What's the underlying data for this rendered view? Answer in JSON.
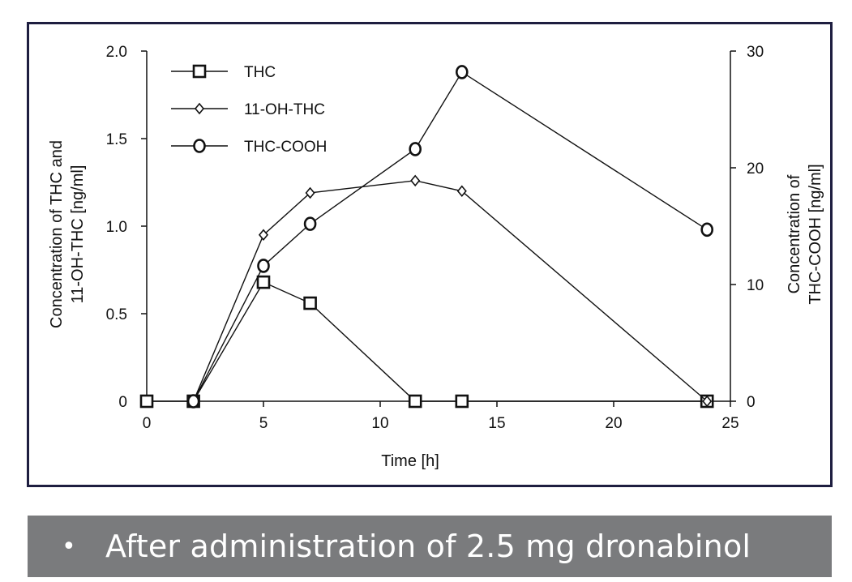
{
  "chart_data": {
    "type": "line",
    "xlabel": "Time [h]",
    "ylabel_left": [
      "Concentration of THC and",
      "11-OH-THC [ng/ml]"
    ],
    "ylabel_right": [
      "Concentration of",
      "THC-COOH [ng/ml]"
    ],
    "xlim": [
      0,
      25
    ],
    "ylim_left": [
      0,
      2.0
    ],
    "ylim_right": [
      0,
      30
    ],
    "x_ticks": [
      0,
      5,
      10,
      15,
      20,
      25
    ],
    "y_left_ticks": [
      "0",
      "0.5",
      "1.0",
      "1.5",
      "2.0"
    ],
    "y_right_ticks": [
      "0",
      "10",
      "20",
      "30"
    ],
    "grid": false,
    "legend_position": "top-left",
    "series": [
      {
        "name": "THC",
        "axis": "left",
        "marker": "square",
        "x": [
          0,
          2,
          5,
          7,
          11.5,
          13.5,
          24
        ],
        "y": [
          0,
          0,
          0.68,
          0.56,
          0,
          0,
          0
        ]
      },
      {
        "name": "11-OH-THC",
        "axis": "left",
        "marker": "diamond",
        "x": [
          2,
          5,
          7,
          11.5,
          13.5,
          24
        ],
        "y": [
          0,
          0.95,
          1.19,
          1.26,
          1.2,
          0
        ]
      },
      {
        "name": "THC-COOH",
        "axis": "right",
        "marker": "circle",
        "x": [
          2,
          5,
          7,
          11.5,
          13.5,
          24
        ],
        "y": [
          0,
          11.6,
          15.2,
          21.6,
          28.2,
          14.7
        ]
      }
    ]
  },
  "caption": {
    "bullet": "•",
    "text": "After administration of 2.5 mg dronabinol"
  }
}
